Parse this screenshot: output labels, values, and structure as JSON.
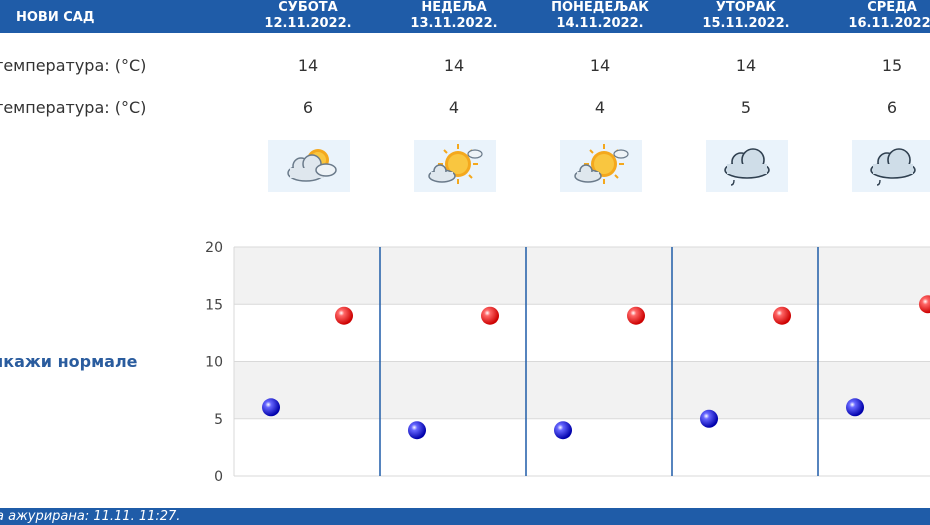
{
  "header": {
    "city": "НОВИ САД"
  },
  "days": [
    {
      "name": "СУБОТА",
      "date": "12.11.2022.",
      "max": "14",
      "min": "6",
      "icon": "sun-cloud-icon"
    },
    {
      "name": "НЕДЕЉА",
      "date": "13.11.2022.",
      "max": "14",
      "min": "4",
      "icon": "sun-cloud-icon"
    },
    {
      "name": "ПОНЕДЕЉАК",
      "date": "14.11.2022.",
      "max": "14",
      "min": "4",
      "icon": "sun-cloud-icon"
    },
    {
      "name": "УТОРАК",
      "date": "15.11.2022.",
      "max": "14",
      "min": "5",
      "icon": "rain-cloud-icon"
    },
    {
      "name": "СРЕДА",
      "date": "16.11.2022.",
      "max": "15",
      "min": "6",
      "icon": "rain-cloud-icon"
    }
  ],
  "rows": {
    "max_label": "температура: (°C)",
    "min_label": "температура: (°C)",
    "icon_label": ":"
  },
  "normals_label": "икажи нормале",
  "footer": {
    "updated": "а ажурирана:  11.11. 11:27."
  },
  "colors": {
    "accent": "#1f5ca8",
    "max_dot": "#cc0000",
    "min_dot": "#0000aa"
  },
  "chart_data": {
    "type": "scatter",
    "categories": [
      "12.11.2022.",
      "13.11.2022.",
      "14.11.2022.",
      "15.11.2022.",
      "16.11.2022."
    ],
    "series": [
      {
        "values": [
          14,
          14,
          14,
          14,
          15
        ]
      },
      {
        "values": [
          6,
          4,
          4,
          5,
          6
        ]
      }
    ],
    "ylim": [
      0,
      20
    ],
    "yticks": [
      0,
      5,
      10,
      15,
      20
    ],
    "grid": true
  }
}
